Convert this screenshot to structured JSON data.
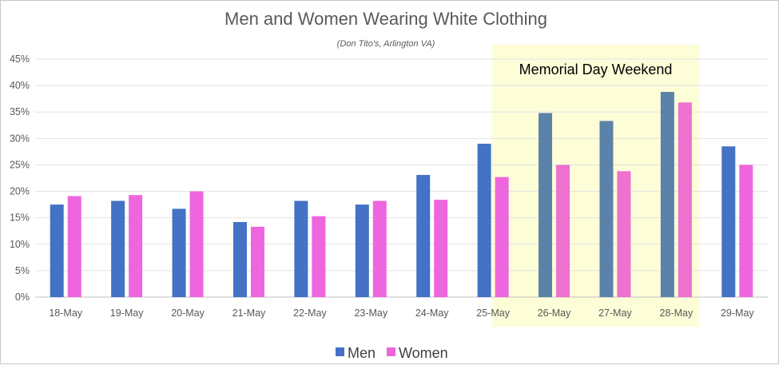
{
  "chart_data": {
    "type": "bar",
    "title": "Men and Women Wearing White Clothing",
    "subtitle": "(Don Tito's, Arlington VA)",
    "xlabel": "",
    "ylabel": "",
    "categories": [
      "18-May",
      "19-May",
      "20-May",
      "21-May",
      "22-May",
      "23-May",
      "24-May",
      "25-May",
      "26-May",
      "27-May",
      "28-May",
      "29-May"
    ],
    "series": [
      {
        "name": "Men",
        "color": "#4472c4",
        "values": [
          17.5,
          18.2,
          16.7,
          14.2,
          18.2,
          17.5,
          23.1,
          29.0,
          34.8,
          33.3,
          38.8,
          28.5
        ]
      },
      {
        "name": "Women",
        "color": "#ee66dd",
        "values": [
          19.1,
          19.3,
          20.0,
          13.3,
          15.3,
          18.2,
          18.4,
          22.7,
          25.0,
          23.8,
          36.8,
          25.0
        ]
      }
    ],
    "ylim": [
      0,
      45
    ],
    "yticks": [
      0,
      5,
      10,
      15,
      20,
      25,
      30,
      35,
      40,
      45
    ],
    "ytick_labels": [
      "0%",
      "5%",
      "10%",
      "15%",
      "20%",
      "25%",
      "30%",
      "35%",
      "40%",
      "45%"
    ],
    "grid": true,
    "legend_position": "bottom",
    "highlight": {
      "label": "Memorial Day Weekend",
      "categories": [
        "26-May",
        "27-May",
        "28-May"
      ],
      "fill_color": "#fdfdd8",
      "shaded_colors": {
        "Men": "#5b82a9",
        "Women": "#ee70cf"
      }
    }
  }
}
